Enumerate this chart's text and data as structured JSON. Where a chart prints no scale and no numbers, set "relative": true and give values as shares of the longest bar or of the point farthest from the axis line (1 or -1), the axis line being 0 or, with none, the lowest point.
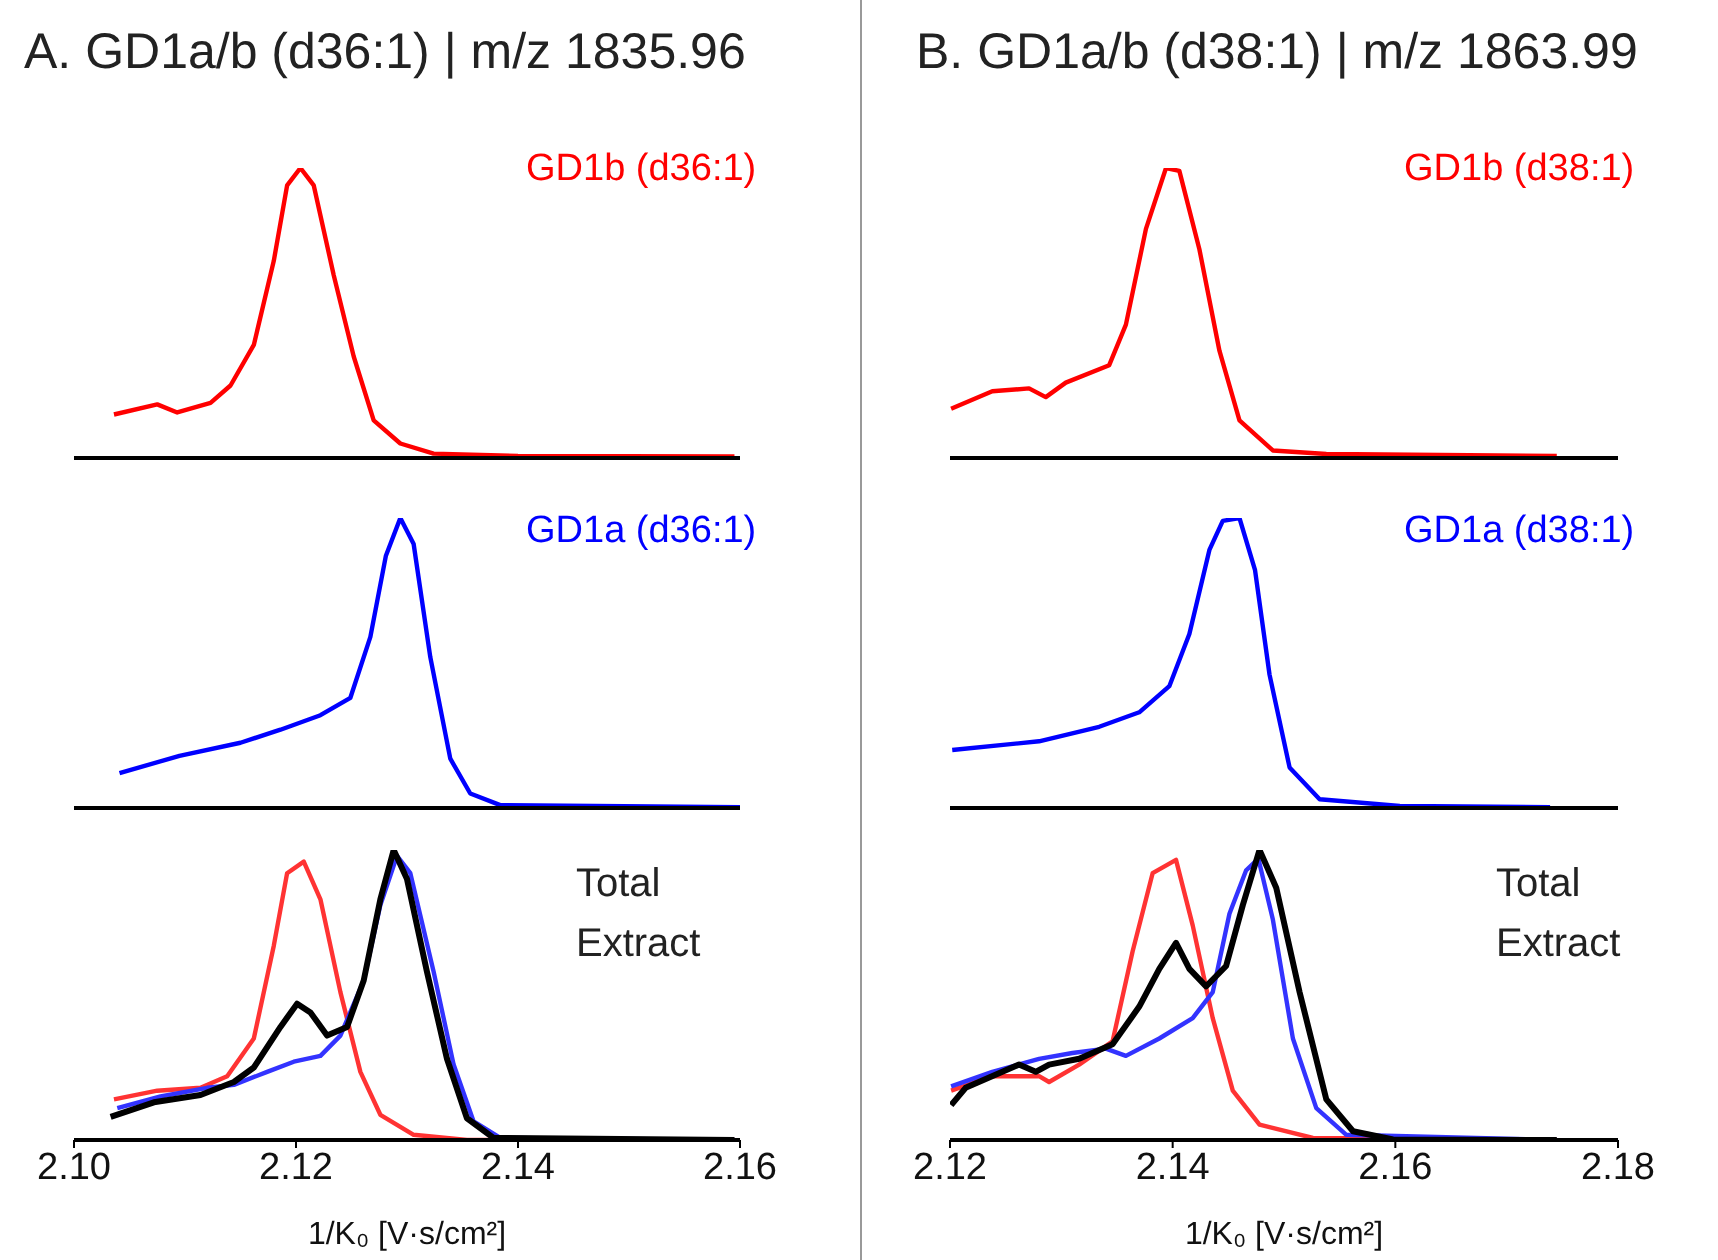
{
  "chart_data": [
    {
      "type": "line",
      "title": "A. GD1a/b (d36:1) | m/z 1835.96",
      "relative": true,
      "xlim": [
        2.1,
        2.16
      ],
      "xticks": [
        2.1,
        2.12,
        2.14,
        2.16
      ],
      "tick_labels": false,
      "series": [
        {
          "name": "GD1b (d36:1)",
          "color": "#ff0000",
          "x": [
            2.1036,
            2.1075,
            2.1093,
            2.1123,
            2.1141,
            2.1162,
            2.118,
            2.1192,
            2.1204,
            2.1216,
            2.1234,
            2.1252,
            2.127,
            2.1294,
            2.1324,
            2.14,
            2.1595
          ],
          "values": [
            0.15,
            0.185,
            0.157,
            0.19,
            0.25,
            0.39,
            0.68,
            0.94,
            1.0,
            0.94,
            0.63,
            0.35,
            0.13,
            0.05,
            0.015,
            0.007,
            0.005
          ]
        }
      ]
    },
    {
      "type": "line",
      "relative": true,
      "xlim": [
        2.1,
        2.16
      ],
      "xticks": [
        2.1,
        2.12,
        2.14,
        2.16
      ],
      "tick_labels": false,
      "series": [
        {
          "name": "GD1a (d36:1)",
          "color": "#0000ff",
          "x": [
            2.1041,
            2.1095,
            2.115,
            2.1186,
            2.1222,
            2.1249,
            2.1267,
            2.1281,
            2.1294,
            2.1306,
            2.1321,
            2.1339,
            2.1357,
            2.1384,
            2.16
          ],
          "values": [
            0.12,
            0.18,
            0.225,
            0.27,
            0.32,
            0.38,
            0.59,
            0.87,
            1.0,
            0.91,
            0.52,
            0.17,
            0.05,
            0.01,
            0.003
          ]
        }
      ]
    },
    {
      "type": "line",
      "relative": true,
      "xlabel": "1/K₀ [V·s/cm²]",
      "xlim": [
        2.1,
        2.16
      ],
      "xticks": [
        {
          "value": 2.1,
          "label": "2.10"
        },
        2.12,
        2.14,
        2.16
      ],
      "tick_labels": "x",
      "annotations": [
        "Total Extract"
      ],
      "series": [
        {
          "color": "#ff3333",
          "x": [
            2.1036,
            2.1075,
            2.1114,
            2.1138,
            2.1162,
            2.118,
            2.1192,
            2.1207,
            2.1222,
            2.124,
            2.1258,
            2.1276,
            2.1306,
            2.1354,
            2.1595
          ],
          "values": [
            0.14,
            0.17,
            0.18,
            0.22,
            0.35,
            0.67,
            0.92,
            0.96,
            0.83,
            0.51,
            0.235,
            0.087,
            0.018,
            0.0,
            0.0
          ]
        },
        {
          "color": "#3333ff",
          "x": [
            2.1039,
            2.1078,
            2.112,
            2.1144,
            2.1174,
            2.1198,
            2.1222,
            2.124,
            2.1261,
            2.1276,
            2.1291,
            2.1303,
            2.1324,
            2.1342,
            2.136,
            2.1384,
            2.1595
          ],
          "values": [
            0.11,
            0.15,
            0.18,
            0.19,
            0.235,
            0.27,
            0.29,
            0.36,
            0.55,
            0.81,
            0.98,
            0.92,
            0.58,
            0.26,
            0.064,
            0.007,
            0.0
          ]
        },
        {
          "color": "#000000",
          "x": [
            2.1033,
            2.1072,
            2.1114,
            2.1144,
            2.1162,
            2.1186,
            2.1201,
            2.1213,
            2.1228,
            2.1246,
            2.1261,
            2.1276,
            2.1288,
            2.13,
            2.1318,
            2.1336,
            2.1354,
            2.1378,
            2.1595
          ],
          "values": [
            0.08,
            0.13,
            0.155,
            0.2,
            0.25,
            0.39,
            0.47,
            0.44,
            0.36,
            0.39,
            0.55,
            0.83,
            1.0,
            0.9,
            0.58,
            0.28,
            0.075,
            0.007,
            0.0
          ]
        }
      ]
    },
    {
      "type": "line",
      "title": "B. GD1a/b (d38:1) | m/z 1863.99",
      "relative": true,
      "xlim": [
        2.12,
        2.18
      ],
      "xticks": [
        2.12,
        2.14,
        2.16,
        2.18
      ],
      "tick_labels": false,
      "series": [
        {
          "name": "GD1b (d38:1)",
          "color": "#ff0000",
          "x": [
            2.1201,
            2.1238,
            2.1271,
            2.1286,
            2.1304,
            2.1343,
            2.1358,
            2.1376,
            2.1394,
            2.1406,
            2.1424,
            2.1442,
            2.146,
            2.149,
            2.1538,
            2.1745
          ],
          "values": [
            0.17,
            0.23,
            0.24,
            0.21,
            0.26,
            0.32,
            0.46,
            0.79,
            1.0,
            0.99,
            0.72,
            0.37,
            0.13,
            0.026,
            0.014,
            0.007
          ]
        }
      ]
    },
    {
      "type": "line",
      "relative": true,
      "xlim": [
        2.12,
        2.18
      ],
      "xticks": [
        2.12,
        2.14,
        2.16,
        2.18
      ],
      "tick_labels": false,
      "series": [
        {
          "name": "GD1a (d38:1)",
          "color": "#0000ff",
          "x": [
            2.1202,
            2.128,
            2.1334,
            2.137,
            2.1397,
            2.1415,
            2.1433,
            2.1445,
            2.146,
            2.1474,
            2.1487,
            2.1505,
            2.1532,
            2.1604,
            2.1739
          ],
          "values": [
            0.2,
            0.23,
            0.28,
            0.33,
            0.42,
            0.6,
            0.89,
            0.99,
            1.0,
            0.82,
            0.46,
            0.14,
            0.03,
            0.007,
            0.003
          ]
        }
      ]
    },
    {
      "type": "line",
      "relative": true,
      "xlabel": "1/K₀ [V·s/cm²]",
      "xlim": [
        2.12,
        2.18
      ],
      "xticks": [
        2.12,
        2.14,
        2.16,
        2.18
      ],
      "tick_labels": "x",
      "annotations": [
        "Total Extract"
      ],
      "series": [
        {
          "color": "#ff3333",
          "x": [
            2.1201,
            2.1238,
            2.128,
            2.1289,
            2.1316,
            2.1346,
            2.1364,
            2.1382,
            2.1403,
            2.1418,
            2.1436,
            2.1454,
            2.1478,
            2.1526,
            2.1745
          ],
          "values": [
            0.17,
            0.22,
            0.22,
            0.2,
            0.26,
            0.34,
            0.65,
            0.92,
            0.966,
            0.74,
            0.42,
            0.17,
            0.053,
            0.007,
            0.0
          ]
        },
        {
          "color": "#3333ff",
          "x": [
            2.1201,
            2.1238,
            2.128,
            2.131,
            2.134,
            2.1358,
            2.1388,
            2.1418,
            2.1436,
            2.1451,
            2.1466,
            2.1477,
            2.149,
            2.1508,
            2.1529,
            2.1556,
            2.1745
          ],
          "values": [
            0.185,
            0.235,
            0.28,
            0.3,
            0.315,
            0.29,
            0.35,
            0.42,
            0.51,
            0.78,
            0.93,
            0.97,
            0.76,
            0.35,
            0.11,
            0.018,
            0.0
          ]
        },
        {
          "color": "#000000",
          "x": [
            2.1201,
            2.1214,
            2.1262,
            2.1277,
            2.1289,
            2.1316,
            2.1346,
            2.137,
            2.1388,
            2.1403,
            2.1415,
            2.143,
            2.1448,
            2.1463,
            2.1478,
            2.1493,
            2.1514,
            2.1538,
            2.1562,
            2.1598,
            2.1745
          ],
          "values": [
            0.12,
            0.18,
            0.26,
            0.235,
            0.26,
            0.28,
            0.33,
            0.46,
            0.59,
            0.68,
            0.59,
            0.53,
            0.6,
            0.81,
            1.0,
            0.87,
            0.51,
            0.14,
            0.03,
            0.002,
            0.0
          ]
        }
      ]
    }
  ]
}
